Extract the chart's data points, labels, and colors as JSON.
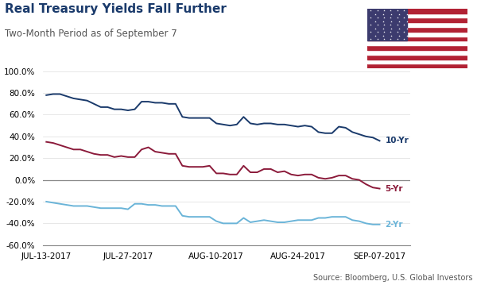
{
  "title": "Real Treasury Yields Fall Further",
  "subtitle": "Two-Month Period as of September 7",
  "source": "Source: Bloomberg, U.S. Global Investors",
  "x_ticks": [
    "JUL-13-2017",
    "JUL-27-2017",
    "AUG-10-2017",
    "AUG-24-2017",
    "SEP-07-2017"
  ],
  "tick_indices": [
    0,
    12,
    25,
    37,
    49
  ],
  "ylim": [
    -0.6,
    1.0
  ],
  "yticks": [
    -0.6,
    -0.4,
    -0.2,
    0.0,
    0.2,
    0.4,
    0.6,
    0.8,
    1.0
  ],
  "color_10yr": "#1a3a6b",
  "color_5yr": "#8b1a3a",
  "color_2yr": "#6ab4d8",
  "title_color": "#1a3a6b",
  "line_10yr": [
    0.78,
    0.79,
    0.79,
    0.77,
    0.75,
    0.74,
    0.73,
    0.7,
    0.67,
    0.67,
    0.65,
    0.65,
    0.64,
    0.65,
    0.72,
    0.72,
    0.71,
    0.71,
    0.7,
    0.7,
    0.58,
    0.57,
    0.57,
    0.57,
    0.57,
    0.52,
    0.51,
    0.5,
    0.51,
    0.58,
    0.52,
    0.51,
    0.52,
    0.52,
    0.51,
    0.51,
    0.5,
    0.49,
    0.5,
    0.49,
    0.44,
    0.43,
    0.43,
    0.49,
    0.48,
    0.44,
    0.42,
    0.4,
    0.39,
    0.36
  ],
  "line_5yr": [
    0.35,
    0.34,
    0.32,
    0.3,
    0.28,
    0.28,
    0.26,
    0.24,
    0.23,
    0.23,
    0.21,
    0.22,
    0.21,
    0.21,
    0.28,
    0.3,
    0.26,
    0.25,
    0.24,
    0.24,
    0.13,
    0.12,
    0.12,
    0.12,
    0.13,
    0.06,
    0.06,
    0.05,
    0.05,
    0.13,
    0.07,
    0.07,
    0.1,
    0.1,
    0.07,
    0.08,
    0.05,
    0.04,
    0.05,
    0.05,
    0.02,
    0.01,
    0.02,
    0.04,
    0.04,
    0.01,
    0.0,
    -0.04,
    -0.07,
    -0.08
  ],
  "line_2yr": [
    -0.2,
    -0.21,
    -0.22,
    -0.23,
    -0.24,
    -0.24,
    -0.24,
    -0.25,
    -0.26,
    -0.26,
    -0.26,
    -0.26,
    -0.27,
    -0.22,
    -0.22,
    -0.23,
    -0.23,
    -0.24,
    -0.24,
    -0.24,
    -0.33,
    -0.34,
    -0.34,
    -0.34,
    -0.34,
    -0.38,
    -0.4,
    -0.4,
    -0.4,
    -0.35,
    -0.39,
    -0.38,
    -0.37,
    -0.38,
    -0.39,
    -0.39,
    -0.38,
    -0.37,
    -0.37,
    -0.37,
    -0.35,
    -0.35,
    -0.34,
    -0.34,
    -0.34,
    -0.37,
    -0.38,
    -0.4,
    -0.41,
    -0.41
  ]
}
